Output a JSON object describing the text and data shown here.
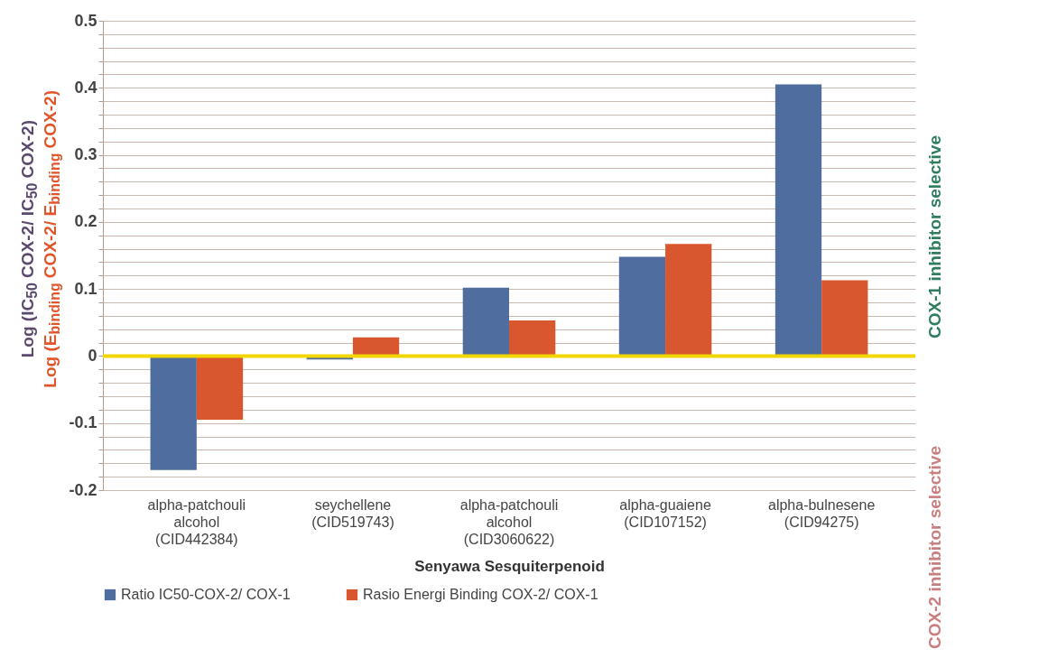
{
  "chart_data": {
    "type": "bar",
    "xlabel": "Senyawa Sesquiterpenoid",
    "ylabel": "Log (IC$_{50}$ COX-2/ IC$_{50}$ COX-2)",
    "categories": [
      "alpha-patchouli alcohol (CID442384)",
      "seychellene (CID519743)",
      "alpha-patchouli alcohol (CID3060622)",
      "alpha-guaiene (CID107152)",
      "alpha-bulnesene (CID94275)"
    ],
    "series": [
      {
        "name": "Ratio IC50-COX-2/ COX-1",
        "color": "#4f6d9e",
        "values": [
          -0.17,
          -0.005,
          0.102,
          0.148,
          0.405
        ]
      },
      {
        "name": "Rasio Energi Binding COX-2/ COX-1",
        "color": "#d9572e",
        "values": [
          -0.095,
          0.028,
          0.053,
          0.167,
          0.113
        ]
      }
    ],
    "ylim": [
      -0.2,
      0.5
    ],
    "yticks": [
      -0.2,
      {
        "value": -0.18,
        "label": null
      },
      {
        "value": -0.16,
        "label": null
      },
      {
        "value": -0.14,
        "label": null
      },
      {
        "value": -0.12,
        "label": null
      },
      -0.1,
      {
        "value": -0.08,
        "label": null
      },
      {
        "value": -0.06,
        "label": null
      },
      {
        "value": -0.04,
        "label": null
      },
      {
        "value": -0.02,
        "label": null
      },
      0,
      {
        "value": 0.02,
        "label": null
      },
      {
        "value": 0.04,
        "label": null
      },
      {
        "value": 0.06,
        "label": null
      },
      {
        "value": 0.08,
        "label": null
      },
      0.1,
      {
        "value": 0.12,
        "label": null
      },
      {
        "value": 0.14,
        "label": null
      },
      {
        "value": 0.16,
        "label": null
      },
      {
        "value": 0.18,
        "label": null
      },
      0.2,
      {
        "value": 0.22,
        "label": null
      },
      {
        "value": 0.24,
        "label": null
      },
      {
        "value": 0.26,
        "label": null
      },
      {
        "value": 0.28,
        "label": null
      },
      0.3,
      {
        "value": 0.32,
        "label": null
      },
      {
        "value": 0.34,
        "label": null
      },
      {
        "value": 0.36,
        "label": null
      },
      {
        "value": 0.38,
        "label": null
      },
      0.4,
      {
        "value": 0.42,
        "label": null
      },
      {
        "value": 0.44,
        "label": null
      },
      {
        "value": 0.46,
        "label": null
      },
      {
        "value": 0.48,
        "label": null
      },
      0.5
    ],
    "grid": "y",
    "legend": "bottom",
    "ref_lines": [
      {
        "axis": "y",
        "value": 0,
        "color": "#f2d600"
      }
    ],
    "annotations": [
      "Log (E$_{binding}$ COX-2/ E$_{binding}$ COX-2)",
      "COX-1 inhibitor selective",
      "COX-2 inhibitor selective"
    ]
  }
}
